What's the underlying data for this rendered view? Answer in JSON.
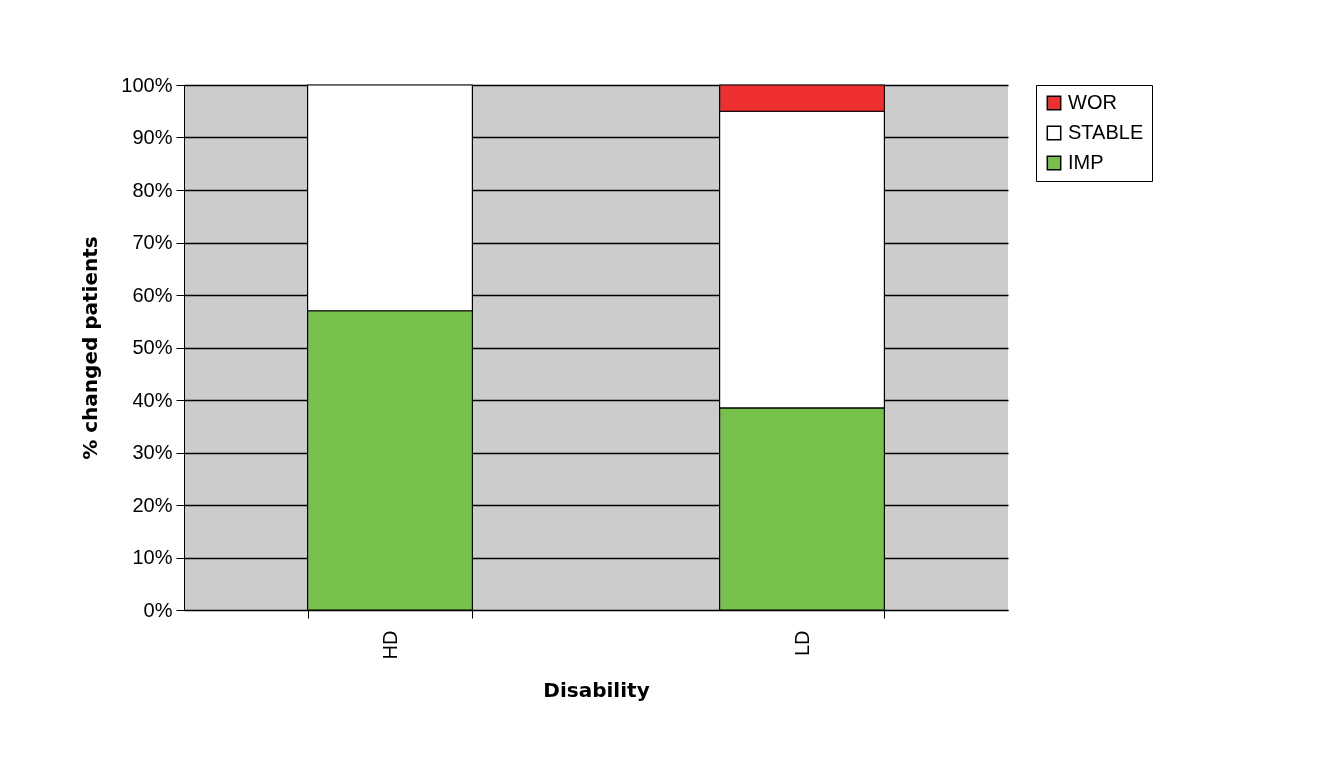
{
  "chart_data": {
    "type": "bar",
    "stacked": true,
    "xlabel": "Disability",
    "ylabel": "% changed patients",
    "categories": [
      "HD",
      "LD"
    ],
    "series": [
      {
        "name": "IMP",
        "color": "#77c04b",
        "values": [
          57,
          38.5
        ]
      },
      {
        "name": "STABLE",
        "color": "#ffffff",
        "values": [
          43,
          56.5
        ]
      },
      {
        "name": "WOR",
        "color": "#ee3030",
        "values": [
          null,
          5
        ]
      }
    ],
    "ylim": [
      0,
      100
    ],
    "yticks": [
      {
        "value": 0,
        "label": "0%"
      },
      {
        "value": 10,
        "label": "10%"
      },
      {
        "value": 20,
        "label": "20%"
      },
      {
        "value": 30,
        "label": "30%"
      },
      {
        "value": 40,
        "label": "40%"
      },
      {
        "value": 50,
        "label": "50%"
      },
      {
        "value": 60,
        "label": "60%"
      },
      {
        "value": 70,
        "label": "70%"
      },
      {
        "value": 80,
        "label": "80%"
      },
      {
        "value": 90,
        "label": "90%"
      },
      {
        "value": 100,
        "label": "100%"
      }
    ],
    "grid": "y",
    "legend": "right"
  }
}
